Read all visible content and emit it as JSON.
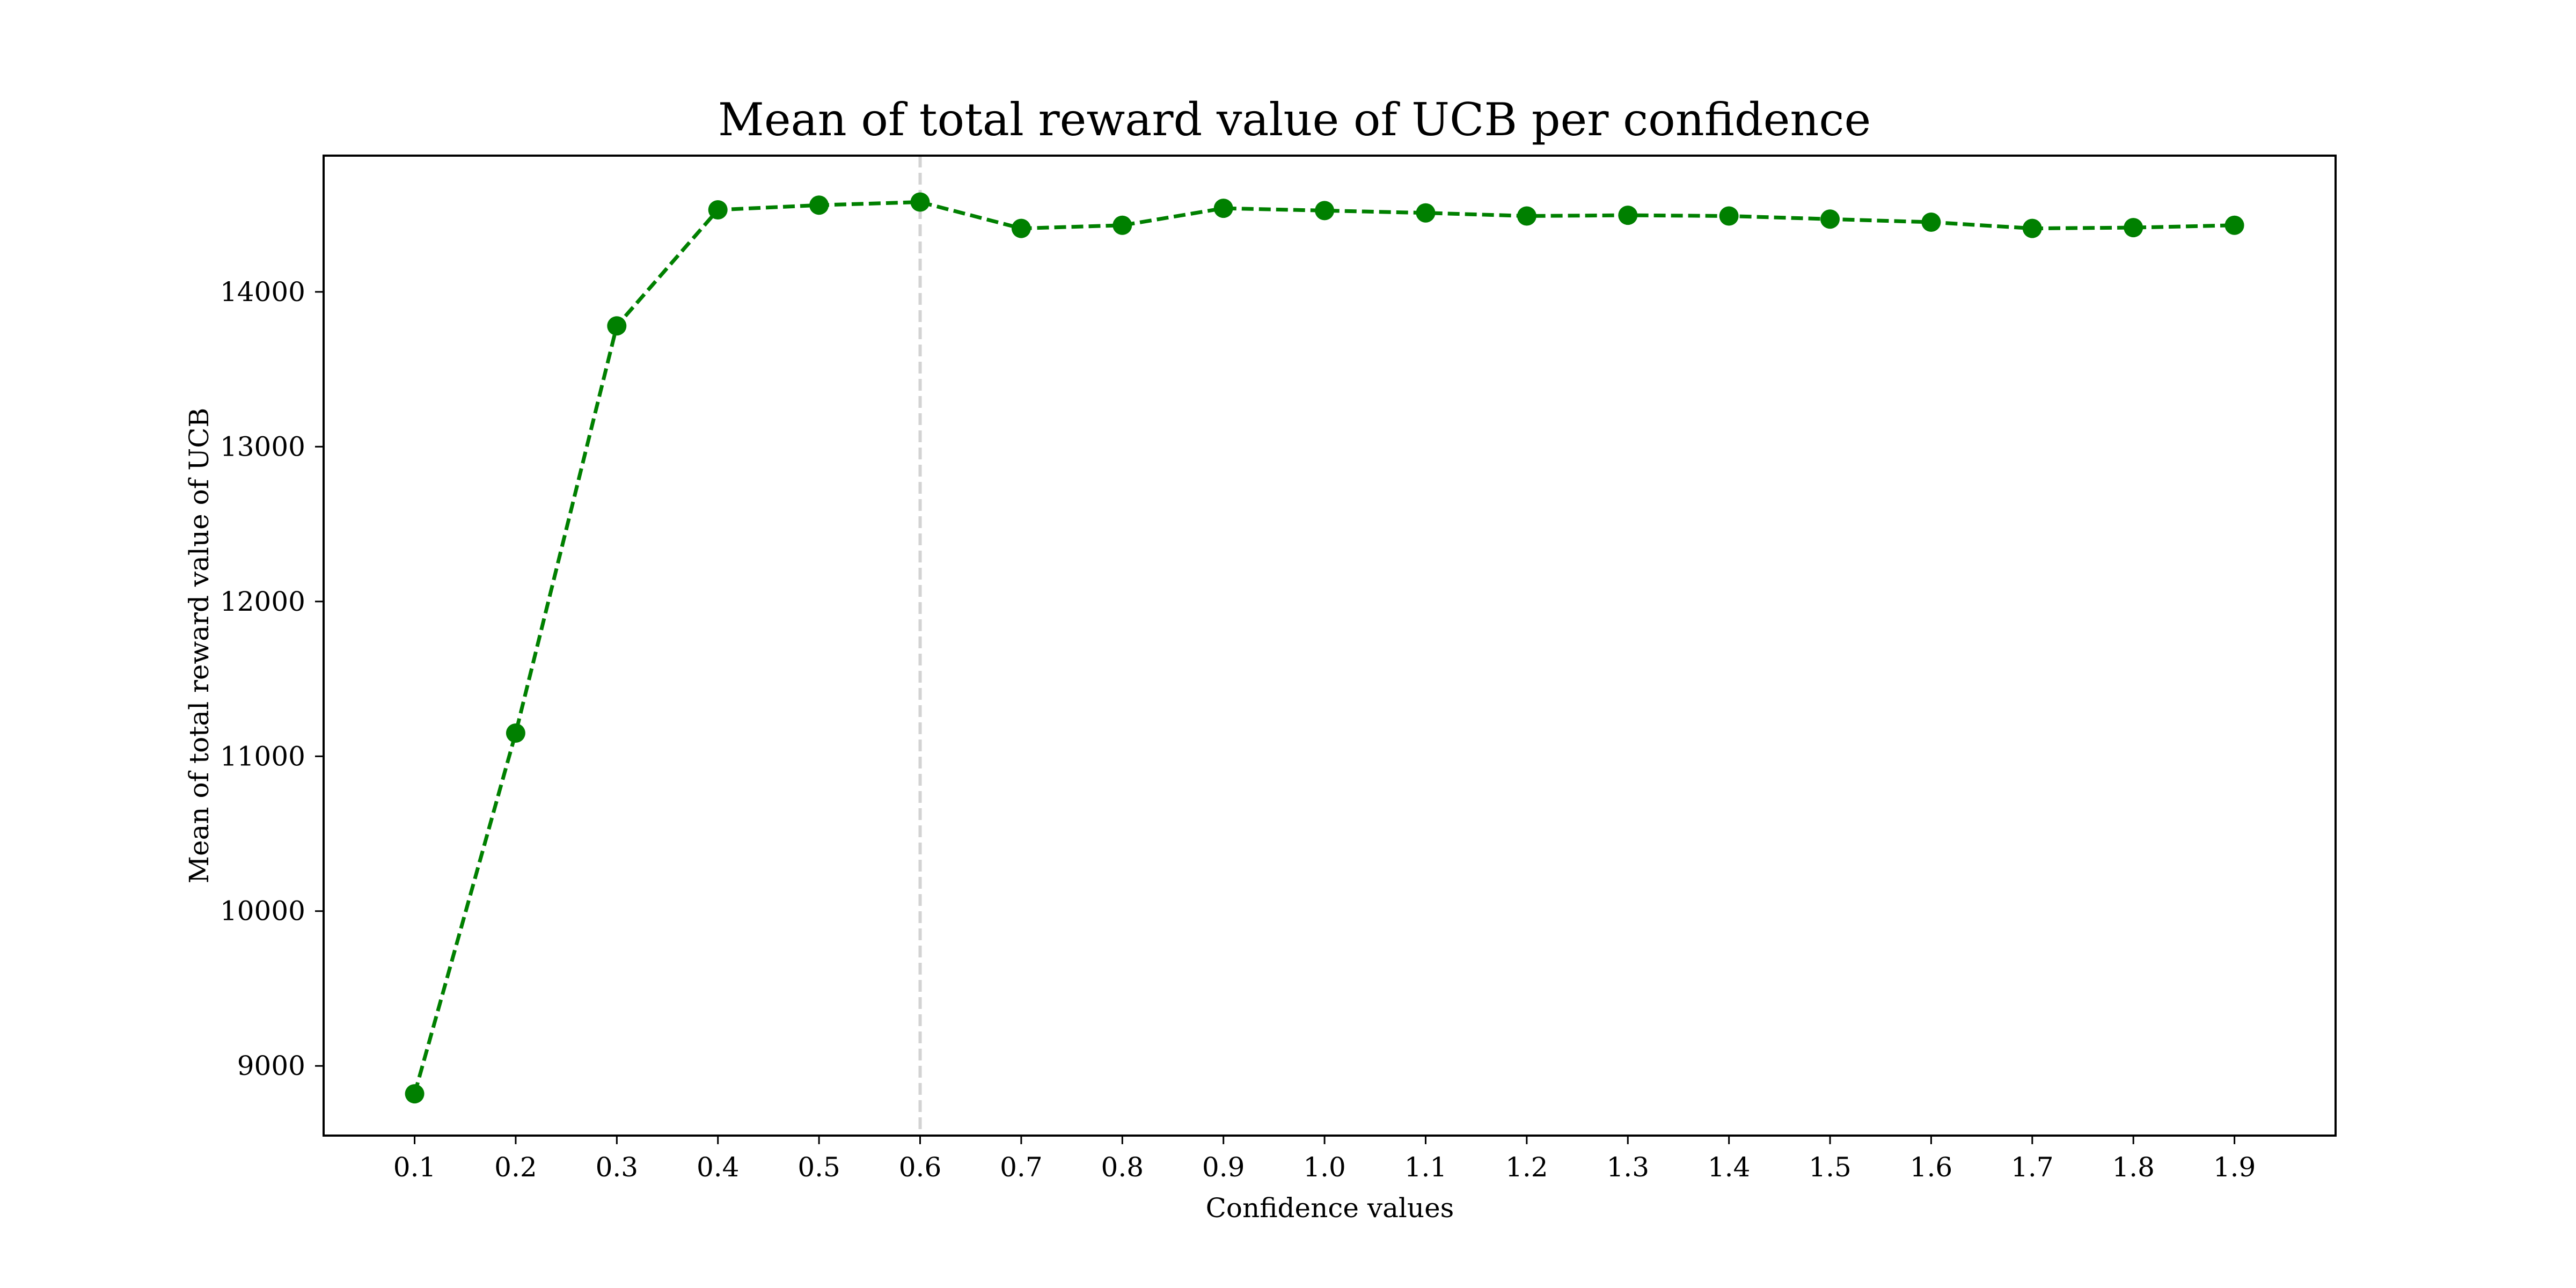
{
  "chart_data": {
    "type": "line",
    "title": "Mean of total reward value of UCB per confidence",
    "xlabel": "Confidence values",
    "ylabel": "Mean of total reward value of UCB",
    "x": [
      0.1,
      0.2,
      0.3,
      0.4,
      0.5,
      0.6,
      0.7,
      0.8,
      0.9,
      1.0,
      1.1,
      1.2,
      1.3,
      1.4,
      1.5,
      1.6,
      1.7,
      1.8,
      1.9
    ],
    "x_tick_labels": [
      "0.1",
      "0.2",
      "0.3",
      "0.4",
      "0.5",
      "0.6",
      "0.7",
      "0.8",
      "0.9",
      "1.0",
      "1.1",
      "1.2",
      "1.3",
      "1.4",
      "1.5",
      "1.6",
      "1.7",
      "1.8",
      "1.9"
    ],
    "series": [
      {
        "values": [
          8820,
          11150,
          13780,
          14530,
          14560,
          14580,
          14410,
          14430,
          14540,
          14525,
          14510,
          14490,
          14495,
          14490,
          14470,
          14450,
          14410,
          14415,
          14430
        ],
        "color": "#008000",
        "line_style": "dashed",
        "marker": "circle"
      }
    ],
    "reference_line": {
      "x": 0.6,
      "color": "#d3d3d3",
      "line_style": "dashed"
    },
    "xlim": [
      0.01,
      2.0
    ],
    "ylim": [
      8550,
      14880
    ],
    "y_ticks": [
      9000,
      10000,
      11000,
      12000,
      13000,
      14000
    ],
    "y_tick_labels": [
      "9000",
      "10000",
      "11000",
      "12000",
      "13000",
      "14000"
    ],
    "grid": false,
    "legend": false
  }
}
